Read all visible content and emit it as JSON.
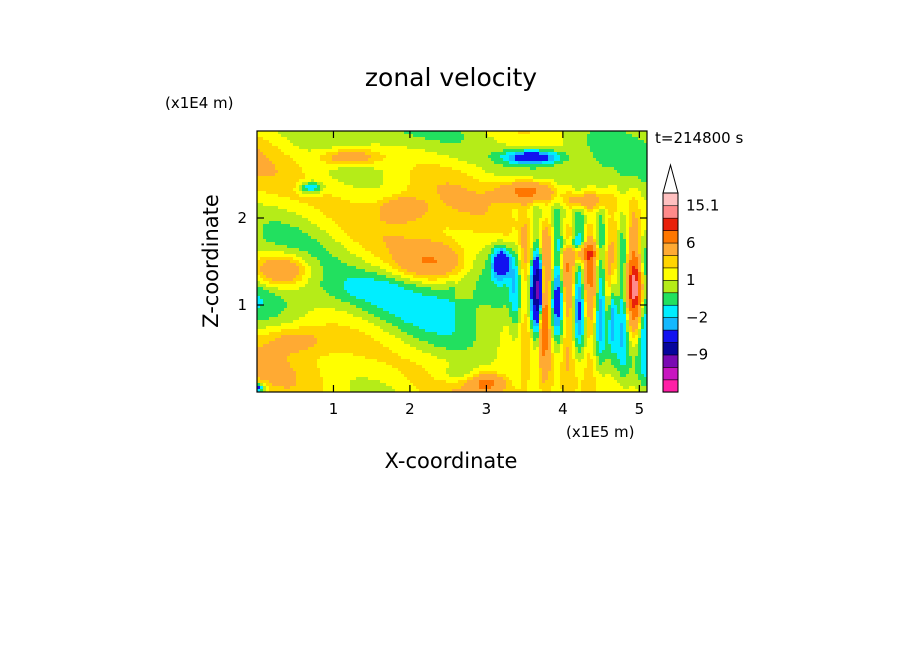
{
  "chart_data": {
    "type": "heatmap",
    "title": "zonal velocity",
    "xlabel": "X-coordinate",
    "ylabel": "Z-coordinate",
    "x_unit": "(x1E5 m)",
    "y_unit": "(x1E4 m)",
    "time_label": "t=214800 s",
    "xlim": [
      0,
      5.1
    ],
    "ylim": [
      0,
      3.0
    ],
    "x_ticks": [
      1,
      2,
      3,
      4,
      5
    ],
    "x_tick_labels": [
      "1",
      "2",
      "3",
      "4",
      "5"
    ],
    "y_ticks": [
      1,
      2
    ],
    "y_tick_labels": [
      "1",
      "2"
    ],
    "colorbar": {
      "levels": [
        -15,
        -12,
        -9,
        -6,
        -3,
        -2,
        -1,
        0,
        1,
        2,
        3,
        6,
        9,
        12,
        15.1
      ],
      "labeled_levels": [
        {
          "value": 15.1,
          "label": "15.1"
        },
        {
          "value": 6,
          "label": "6"
        },
        {
          "value": 1,
          "label": "1"
        },
        {
          "value": -2,
          "label": "−2"
        },
        {
          "value": -9,
          "label": "−9"
        }
      ],
      "colors": [
        "#ff1fa6",
        "#c816c0",
        "#7a0ab3",
        "#06059c",
        "#1212f0",
        "#14b8ff",
        "#00eeff",
        "#22e05f",
        "#b5ec18",
        "#ffff00",
        "#ffd400",
        "#ffaa33",
        "#ff7700",
        "#e8200a",
        "#ff8a8a",
        "#ffc0c0"
      ],
      "extend": "max"
    }
  }
}
